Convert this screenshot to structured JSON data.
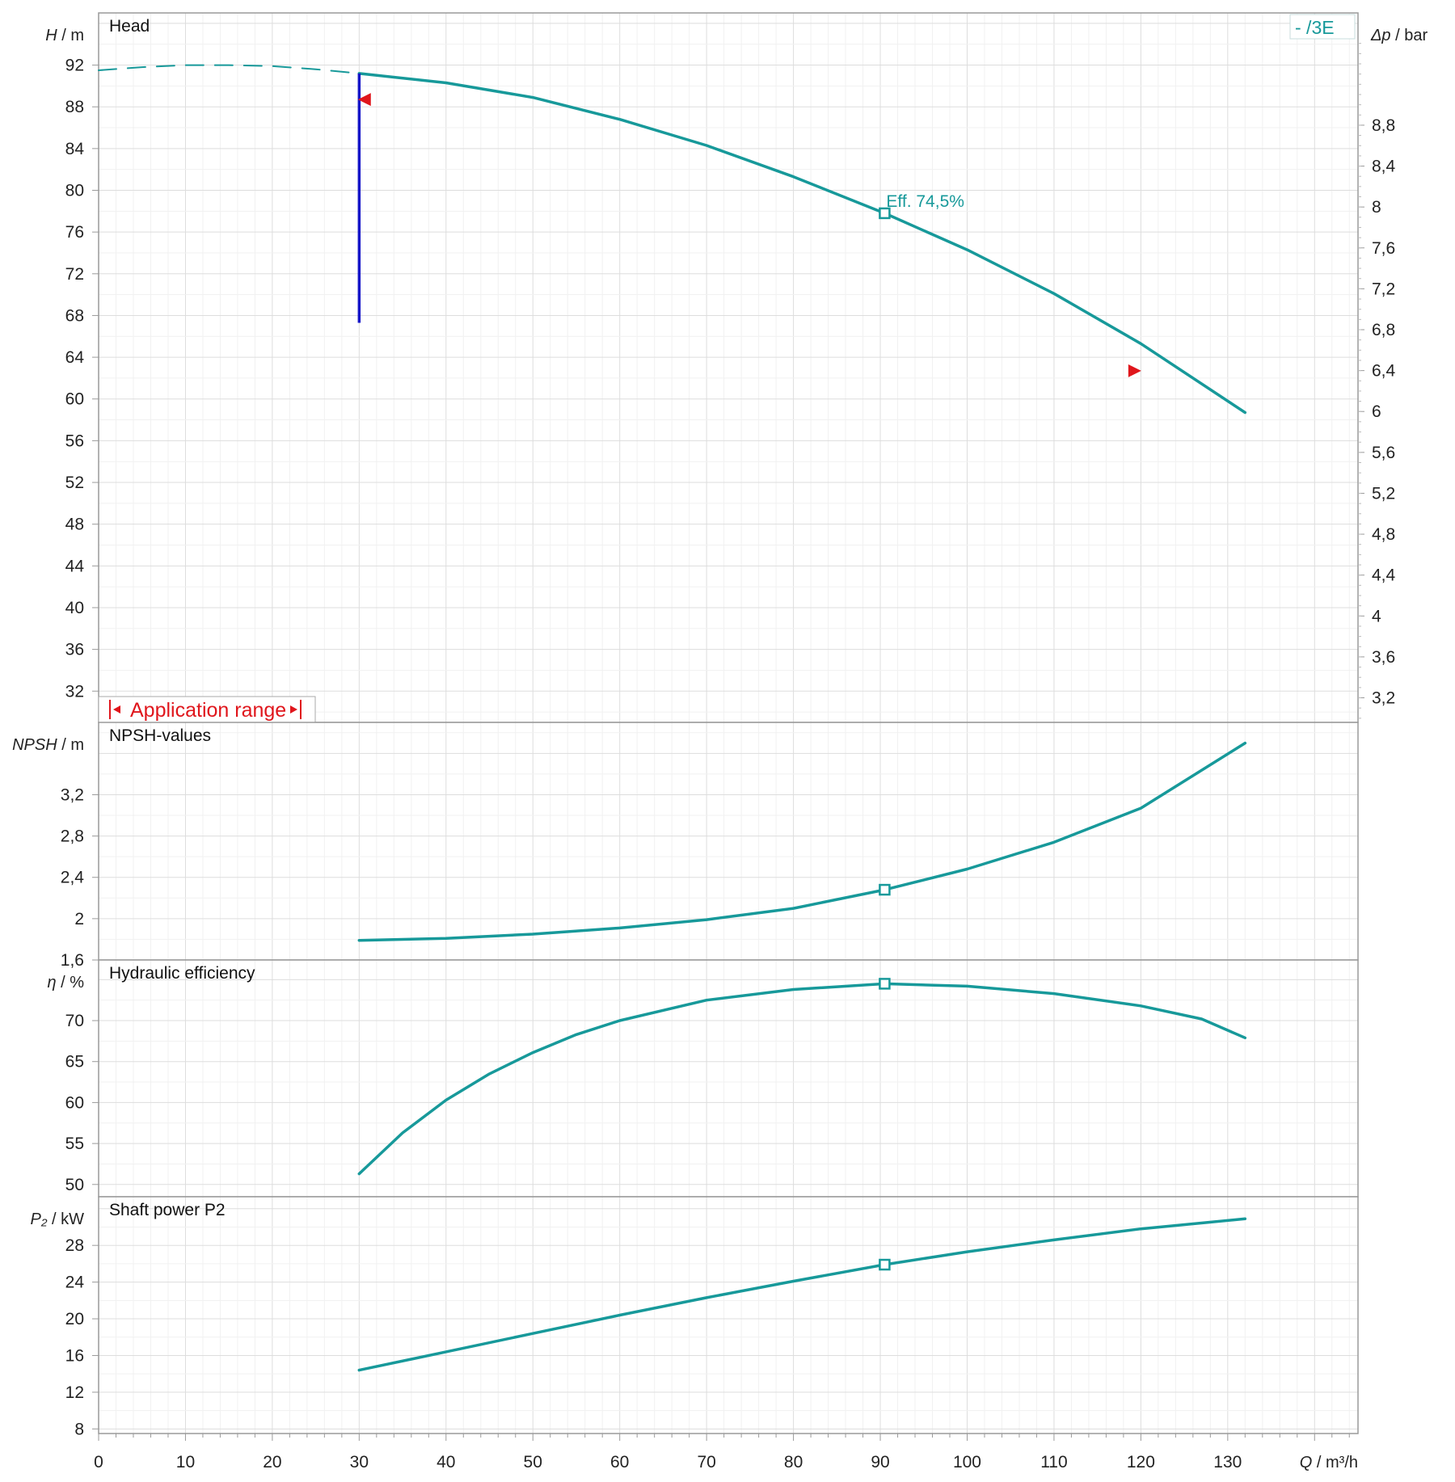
{
  "chart_data": {
    "type": "line",
    "x_axis": {
      "label_symbol": "Q",
      "label_unit": "/ m³/h",
      "range": [
        0,
        145
      ],
      "ticks": [
        0,
        10,
        20,
        30,
        40,
        50,
        60,
        70,
        80,
        90,
        100,
        110,
        120,
        130
      ],
      "tick_labels": [
        "0",
        "10",
        "20",
        "30",
        "40",
        "50",
        "60",
        "70",
        "80",
        "90",
        "100",
        "110",
        "120",
        "130"
      ]
    },
    "legend": {
      "text": "-    /3E",
      "placement": "top-right"
    },
    "colors": {
      "curve": "#17999a",
      "limit": "#1515c8",
      "marker": "#e0161c",
      "grid": "#e6e6e6",
      "frame": "#9a9a9a"
    },
    "panels": [
      {
        "id": "head",
        "title": "Head",
        "ylabel_symbol": "H",
        "ylabel_unit": "/ m",
        "ylim": [
          29,
          97
        ],
        "ticks": [
          32,
          36,
          40,
          44,
          48,
          52,
          56,
          60,
          64,
          68,
          72,
          76,
          80,
          84,
          88,
          92
        ],
        "tick_labels": [
          "32",
          "36",
          "40",
          "44",
          "48",
          "52",
          "56",
          "60",
          "64",
          "68",
          "72",
          "76",
          "80",
          "84",
          "88",
          "92"
        ],
        "right_axis": {
          "label_symbol": "Δp",
          "label_unit": "/ bar",
          "ticks": [
            3.2,
            3.6,
            4,
            4.4,
            4.8,
            5.2,
            5.6,
            6,
            6.4,
            6.8,
            7.2,
            7.6,
            8,
            8.4,
            8.8
          ],
          "tick_labels": [
            "3,2",
            "3,6",
            "4",
            "4,4",
            "4,8",
            "5,2",
            "5,6",
            "6",
            "6,4",
            "6,8",
            "7,2",
            "7,6",
            "8",
            "8,4",
            "8,8"
          ],
          "m_per_bar": 9.8
        },
        "series": [
          {
            "style": "dashed",
            "x": [
              0,
              5,
              10,
              15,
              20,
              25,
              30
            ],
            "y": [
              91.5,
              91.8,
              92,
              92,
              91.9,
              91.6,
              91.2
            ]
          },
          {
            "style": "solid",
            "x": [
              30,
              40,
              50,
              60,
              70,
              80,
              90.5,
              100,
              110,
              120,
              132
            ],
            "y": [
              91.2,
              90.3,
              88.9,
              86.8,
              84.3,
              81.3,
              77.8,
              74.3,
              70.1,
              65.3,
              58.7
            ]
          }
        ],
        "limit_line": {
          "x": 30,
          "y_from": 67.3,
          "y_to": 91.2
        },
        "range_markers": [
          {
            "x": 30.6,
            "y": 88.7,
            "dir": "left"
          },
          {
            "x": 119.3,
            "y": 62.7,
            "dir": "right"
          }
        ],
        "operating_point": {
          "x": 90.5,
          "y": 77.8,
          "label": "Eff.  74,5%"
        },
        "application_range": {
          "label": "Application range"
        }
      },
      {
        "id": "npsh",
        "title": "NPSH-values",
        "ylabel_symbol": "NPSH",
        "ylabel_unit": "/ m",
        "ylim": [
          1.6,
          3.9
        ],
        "ticks": [
          1.6,
          2,
          2.4,
          2.8,
          3.2
        ],
        "tick_labels": [
          "1,6",
          "2",
          "2,4",
          "2,8",
          "3,2"
        ],
        "series": [
          {
            "style": "solid",
            "x": [
              30,
              40,
              50,
              60,
              70,
              80,
              90.5,
              100,
              110,
              120,
              132
            ],
            "y": [
              1.79,
              1.81,
              1.85,
              1.91,
              1.99,
              2.1,
              2.28,
              2.48,
              2.74,
              3.07,
              3.7
            ]
          }
        ],
        "operating_point": {
          "x": 90.5,
          "y": 2.28
        }
      },
      {
        "id": "efficiency",
        "title": "Hydraulic efficiency",
        "ylabel_symbol": "η",
        "ylabel_unit": "/ %",
        "ylim": [
          48.5,
          77.4
        ],
        "ticks": [
          50,
          55,
          60,
          65,
          70
        ],
        "tick_labels": [
          "50",
          "55",
          "60",
          "65",
          "70"
        ],
        "series": [
          {
            "style": "solid",
            "x": [
              30,
              35,
              40,
              45,
              50,
              55,
              60,
              70,
              80,
              90.5,
              100,
              110,
              120,
              127,
              132
            ],
            "y": [
              51.3,
              56.3,
              60.3,
              63.5,
              66.1,
              68.3,
              70.0,
              72.5,
              73.8,
              74.5,
              74.2,
              73.3,
              71.8,
              70.2,
              67.9
            ]
          }
        ],
        "operating_point": {
          "x": 90.5,
          "y": 74.5
        }
      },
      {
        "id": "power",
        "title": "Shaft power P2",
        "ylabel_symbol": "P₂",
        "ylabel_unit": "/ kW",
        "ylim": [
          7.5,
          33.3
        ],
        "ticks": [
          8,
          12,
          16,
          20,
          24,
          28
        ],
        "tick_labels": [
          "8",
          "12",
          "16",
          "20",
          "24",
          "28"
        ],
        "series": [
          {
            "style": "solid",
            "x": [
              30,
              40,
              50,
              60,
              70,
              80,
              90.5,
              100,
              110,
              120,
              132
            ],
            "y": [
              14.4,
              16.4,
              18.4,
              20.4,
              22.3,
              24.1,
              25.9,
              27.3,
              28.6,
              29.8,
              30.9
            ]
          }
        ],
        "operating_point": {
          "x": 90.5,
          "y": 25.9
        }
      }
    ]
  }
}
